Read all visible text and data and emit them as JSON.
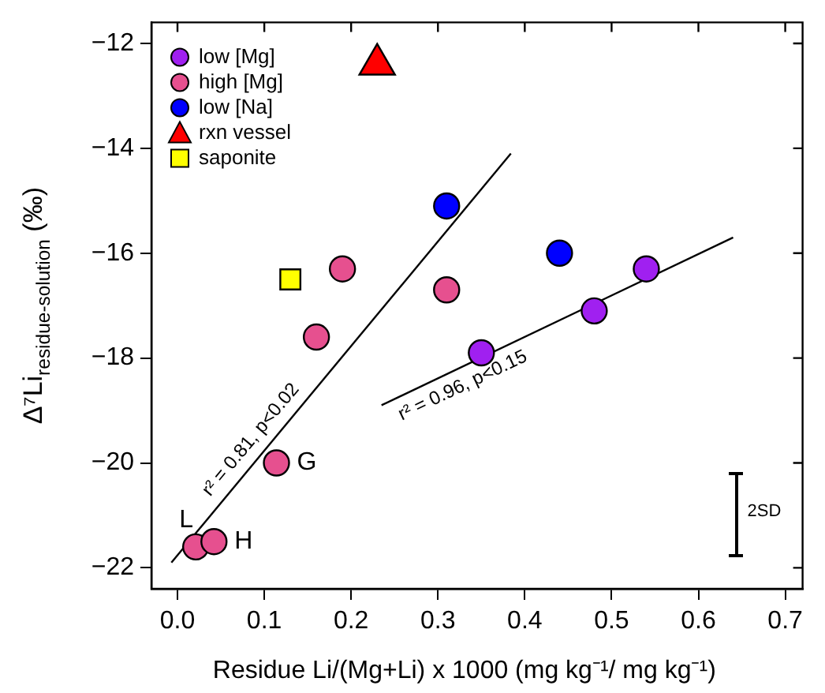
{
  "chart_data": {
    "type": "scatter",
    "xlabel": "Residue Li/(Mg+Li) x 1000 (mg kg⁻¹/ mg kg⁻¹)",
    "ylabel": "Δ⁷Li$_{residue-solution}$ (‰)",
    "xlim": [
      -0.03,
      0.72
    ],
    "xticks": [
      {
        "value": 0,
        "label": "0.0"
      },
      0.1,
      0.2,
      0.3,
      0.4,
      0.5,
      0.6,
      0.7
    ],
    "ylim": [
      -22.4,
      -11.6
    ],
    "yticks": [
      -12,
      -14,
      -16,
      -18,
      -20,
      -22
    ],
    "grid": false,
    "legend": "top left",
    "series": [
      {
        "name": "low [Mg]",
        "color": "#a020f0",
        "marker": "circle",
        "x": [
          0.35,
          0.48,
          0.54
        ],
        "values": [
          -17.9,
          -17.1,
          -16.3
        ]
      },
      {
        "name": "high [Mg]",
        "color": "#e6508f",
        "marker": "circle",
        "x": [
          0.021,
          0.042,
          0.114,
          0.16,
          0.19,
          0.31
        ],
        "values": [
          -21.6,
          -21.5,
          -20.0,
          -17.6,
          -16.3,
          -16.7
        ]
      },
      {
        "name": "low [Na]",
        "color": "#0000ff",
        "marker": "circle",
        "x": [
          0.31,
          0.44
        ],
        "values": [
          -15.1,
          -16.0
        ]
      },
      {
        "name": "rxn vessel",
        "color": "#ff0000",
        "marker": "triangle",
        "x": [
          0.23
        ],
        "values": [
          -12.4
        ]
      },
      {
        "name": "saponite",
        "color": "#ffff00",
        "marker": "square",
        "x": [
          0.13
        ],
        "values": [
          -16.5
        ]
      },
      {
        "type": "line",
        "color": "#000000",
        "marker": "none",
        "x": [
          -0.007,
          0.384
        ],
        "values": [
          -21.9,
          -14.1
        ]
      },
      {
        "type": "line",
        "color": "#000000",
        "marker": "none",
        "x": [
          0.235,
          0.64
        ],
        "values": [
          -18.9,
          -15.7
        ]
      }
    ],
    "annotations": [
      {
        "text": "L",
        "x": 0.021,
        "y": -21.6
      },
      {
        "text": "H",
        "x": 0.042,
        "y": -21.5
      },
      {
        "text": "G",
        "x": 0.114,
        "y": -20.0
      },
      {
        "text": "r² = 0.81, p<0.02",
        "x": 0.1,
        "y": -19.77
      },
      {
        "text": "r² = 0.96, p<0.15",
        "x": 0.32,
        "y": -18.23
      },
      "2SD"
    ]
  }
}
